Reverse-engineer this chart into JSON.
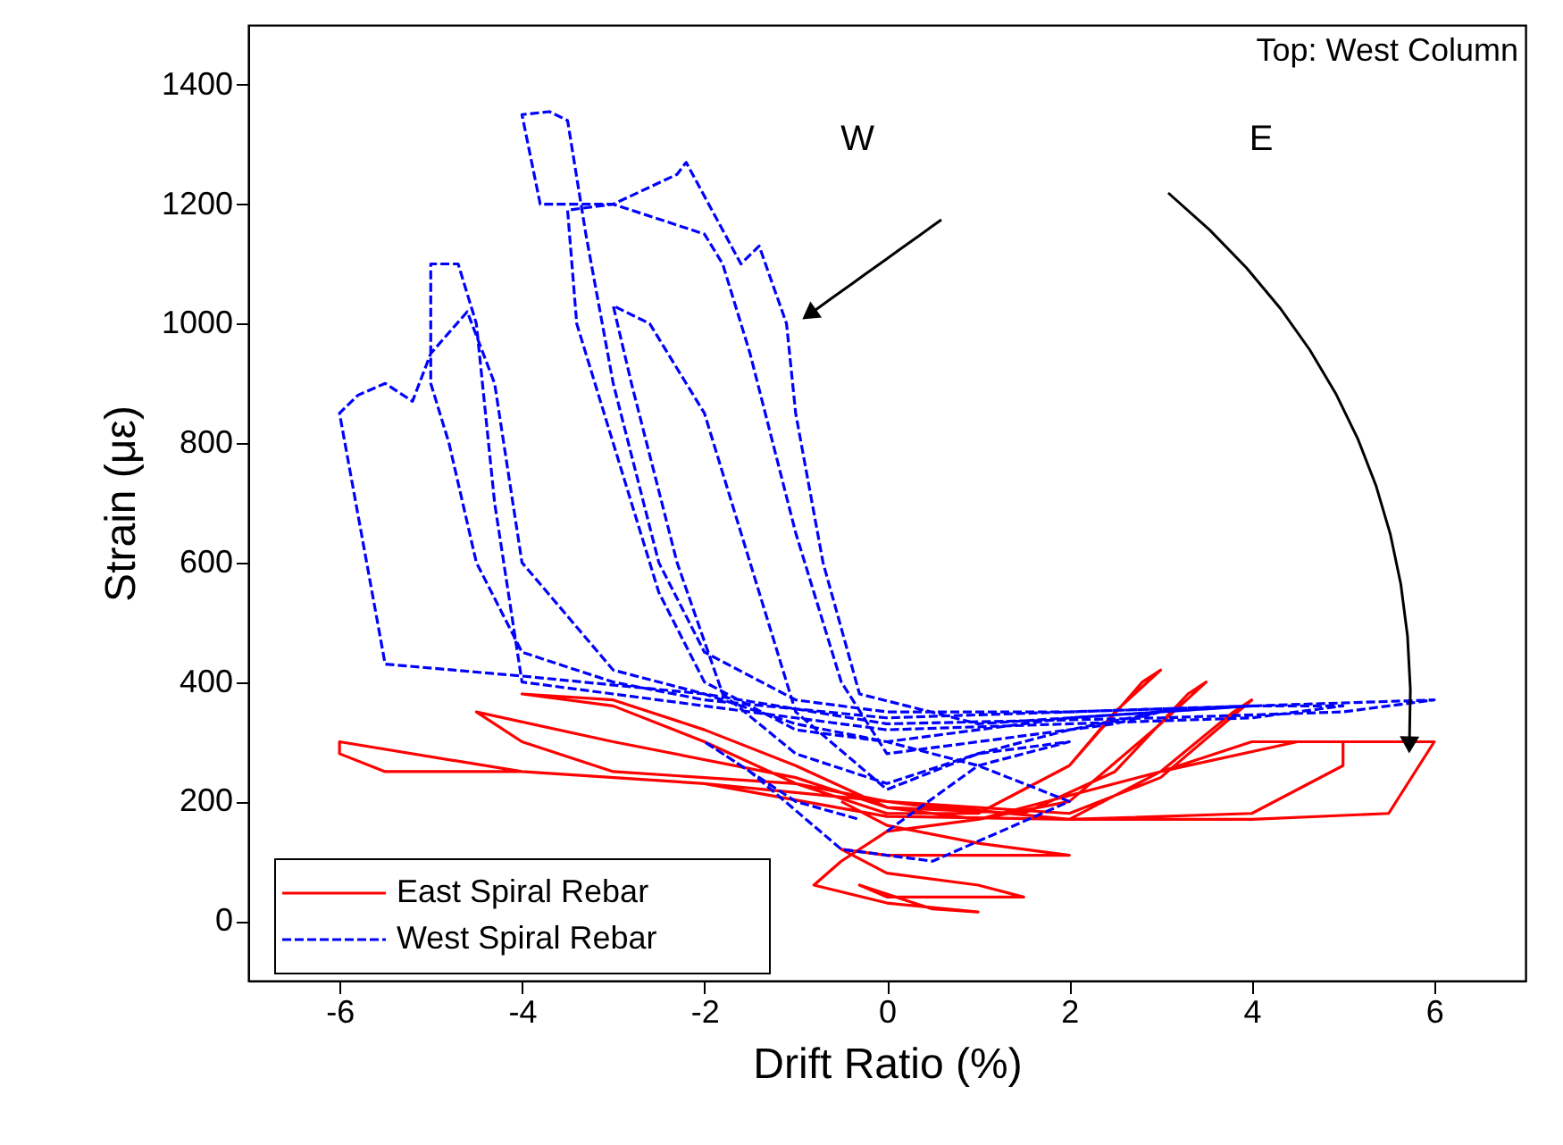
{
  "chart_data": {
    "type": "line",
    "xlabel": "Drift Ratio (%)",
    "ylabel": "Strain (με)",
    "xlim": [
      -7,
      7
    ],
    "xticks": [
      -6,
      -4,
      -2,
      0,
      2,
      4,
      6
    ],
    "ylim": [
      -100,
      1500
    ],
    "yticks": [
      0,
      200,
      400,
      600,
      800,
      {
        "value": 1000,
        "label": "1000"
      },
      {
        "value": 1200,
        "label": "1200"
      },
      {
        "value": 1400,
        "label": "1400"
      }
    ],
    "grid": false,
    "legend": "bottom left",
    "annotations": [
      "Top: West Column",
      "W",
      "E"
    ],
    "series": [
      {
        "name": "East Spiral Rebar",
        "color": "#ff0000",
        "line_style": "solid",
        "x": [
          0,
          1,
          2,
          2.5,
          3,
          2.8,
          2,
          1,
          0,
          -1,
          -2,
          -3,
          -4,
          -3,
          -2,
          -1,
          0,
          1,
          2,
          3,
          3.5,
          3.3,
          2.5,
          1.5,
          0,
          -1,
          -3,
          -4.5,
          -4,
          -3,
          -1,
          0,
          2,
          3,
          4,
          3.8,
          3,
          2,
          0,
          -2,
          -4,
          -6,
          -6,
          -5.5,
          -4,
          -2,
          0,
          2,
          4,
          5,
          5,
          4,
          3,
          2,
          4,
          5.5,
          6,
          5.5,
          4.5,
          3,
          1,
          0,
          -0.5,
          -0.8,
          0,
          1,
          0.5,
          -0.3,
          0,
          1.5,
          1,
          0,
          -0.5,
          0,
          2,
          1,
          0,
          -0.5
        ],
        "values": [
          200,
          180,
          260,
          350,
          420,
          400,
          260,
          180,
          180,
          230,
          300,
          360,
          380,
          370,
          320,
          260,
          190,
          170,
          200,
          330,
          400,
          380,
          250,
          180,
          190,
          240,
          300,
          350,
          300,
          250,
          230,
          200,
          180,
          240,
          370,
          350,
          250,
          170,
          175,
          230,
          250,
          300,
          280,
          250,
          250,
          230,
          200,
          170,
          180,
          260,
          300,
          300,
          250,
          170,
          170,
          180,
          300,
          300,
          300,
          250,
          170,
          150,
          100,
          60,
          30,
          15,
          20,
          60,
          40,
          40,
          60,
          80,
          120,
          110,
          110,
          130,
          160,
          200
        ]
      },
      {
        "name": "West Spiral Rebar",
        "color": "#0000ff",
        "line_style": "dashed",
        "x": [
          0,
          1,
          2,
          1,
          0,
          -1,
          -1.5,
          -2,
          -2.6,
          -3,
          -2.8,
          -2.3,
          -1.8,
          -1,
          0,
          1,
          2,
          3,
          2.5,
          1,
          0,
          -0.5,
          -1,
          -1.5,
          -1.8,
          -2,
          -3,
          -3.5,
          -3.4,
          -3,
          -2.5,
          -2,
          -1,
          0,
          2,
          4,
          3,
          1,
          -0.3,
          -0.7,
          -1,
          -1.1,
          -1.4,
          -1.6,
          -2.2,
          -2.3,
          -3,
          -3.8,
          -4,
          -3.7,
          -3.5,
          -3.3,
          -3,
          -2.5,
          -2,
          -1,
          0,
          2,
          4,
          5,
          4,
          2,
          0,
          -1,
          -2,
          -3,
          -4,
          -4.3,
          -4.5,
          -4.7,
          -5,
          -5,
          -4.8,
          -4.5,
          -4,
          -3,
          -2,
          0,
          2,
          4,
          6,
          5,
          3,
          0,
          -2,
          -4,
          -5.5,
          -6,
          -5.8,
          -5.5,
          -5.2,
          -5,
          -4.6,
          -4.3,
          -4,
          -3,
          -2,
          -1,
          0,
          1,
          2,
          0.5,
          -0.5,
          -1.5,
          -2,
          -1,
          -0.3
        ],
        "values": [
          150,
          260,
          300,
          280,
          220,
          350,
          600,
          850,
          1000,
          1030,
          900,
          600,
          380,
          280,
          230,
          280,
          320,
          350,
          330,
          300,
          280,
          400,
          650,
          950,
          1100,
          1150,
          1200,
          1190,
          1000,
          800,
          550,
          400,
          320,
          300,
          340,
          360,
          350,
          330,
          380,
          600,
          850,
          1000,
          1130,
          1100,
          1270,
          1250,
          1200,
          1200,
          1350,
          1355,
          1340,
          1150,
          900,
          600,
          450,
          370,
          350,
          350,
          360,
          360,
          340,
          330,
          320,
          340,
          360,
          380,
          400,
          700,
          1000,
          1100,
          1100,
          900,
          800,
          600,
          450,
          400,
          370,
          340,
          350,
          360,
          370,
          350,
          340,
          330,
          380,
          410,
          430,
          850,
          880,
          900,
          870,
          950,
          1020,
          900,
          600,
          420,
          380,
          330,
          300,
          260,
          200,
          100,
          120,
          250,
          300,
          200,
          170
        ]
      }
    ]
  }
}
